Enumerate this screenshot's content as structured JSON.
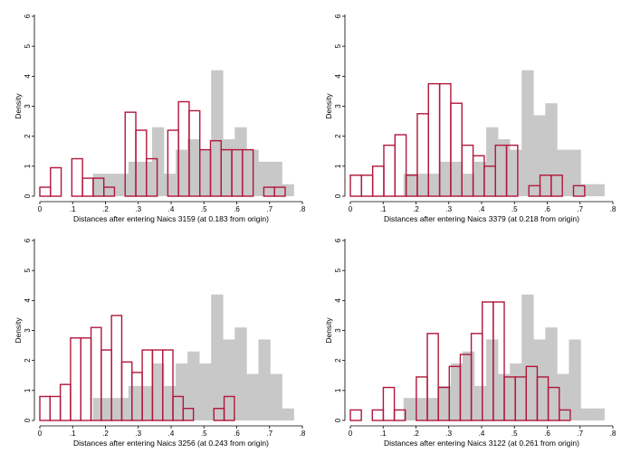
{
  "colors": {
    "background_bars": "#c8c8c8",
    "highlight_bars": "#b0173a",
    "axis": "#000000"
  },
  "chart_data": [
    {
      "type": "histogram",
      "xlabel": "Distances after entering Naics 3159 (at 0.183 from origin)",
      "ylabel": "Density",
      "xlim": [
        0,
        0.8
      ],
      "ylim": [
        0,
        6
      ],
      "xticks": [
        "0",
        ".1",
        ".2",
        ".3",
        ".4",
        ".5",
        ".6",
        ".7",
        ".8"
      ],
      "yticks": [
        "0",
        "1",
        "2",
        "3",
        "4",
        "5",
        "6"
      ],
      "background": {
        "bin_width": 0.036,
        "bins": [
          [
            0.162,
            0.75
          ],
          [
            0.198,
            0.75
          ],
          [
            0.234,
            0.75
          ],
          [
            0.27,
            1.15
          ],
          [
            0.306,
            1.15
          ],
          [
            0.342,
            2.3
          ],
          [
            0.378,
            0.75
          ],
          [
            0.414,
            1.55
          ],
          [
            0.45,
            1.9
          ],
          [
            0.486,
            1.55
          ],
          [
            0.522,
            4.2
          ],
          [
            0.558,
            1.9
          ],
          [
            0.594,
            2.3
          ],
          [
            0.63,
            1.55
          ],
          [
            0.666,
            1.15
          ],
          [
            0.702,
            1.15
          ],
          [
            0.738,
            0.4
          ]
        ]
      },
      "highlight": {
        "bin_width": 0.0325,
        "bins": [
          [
            0,
            0.3
          ],
          [
            0.0325,
            0.95
          ],
          [
            0.0975,
            1.25
          ],
          [
            0.13,
            0.6
          ],
          [
            0.1625,
            0.6
          ],
          [
            0.195,
            0.3
          ],
          [
            0.26,
            2.8
          ],
          [
            0.2925,
            2.2
          ],
          [
            0.325,
            1.25
          ],
          [
            0.39,
            2.2
          ],
          [
            0.4225,
            3.15
          ],
          [
            0.455,
            2.85
          ],
          [
            0.4875,
            1.55
          ],
          [
            0.52,
            1.85
          ],
          [
            0.5525,
            1.55
          ],
          [
            0.585,
            1.55
          ],
          [
            0.6175,
            1.55
          ],
          [
            0.6825,
            0.3
          ],
          [
            0.715,
            0.3
          ]
        ]
      }
    },
    {
      "type": "histogram",
      "xlabel": "Distances after entering Naics 3379 (at 0.218 from origin)",
      "ylabel": "Density",
      "xlim": [
        0,
        0.8
      ],
      "ylim": [
        0,
        6
      ],
      "xticks": [
        "0",
        ".1",
        ".2",
        ".3",
        ".4",
        ".5",
        ".6",
        ".7",
        ".8"
      ],
      "yticks": [
        "0",
        "1",
        "2",
        "3",
        "4",
        "5",
        "6"
      ],
      "background": {
        "bin_width": 0.036,
        "bins": [
          [
            0.162,
            0.75
          ],
          [
            0.198,
            0.75
          ],
          [
            0.234,
            0.75
          ],
          [
            0.27,
            1.15
          ],
          [
            0.306,
            1.15
          ],
          [
            0.342,
            0.75
          ],
          [
            0.378,
            1.15
          ],
          [
            0.414,
            2.3
          ],
          [
            0.45,
            1.9
          ],
          [
            0.486,
            1.55
          ],
          [
            0.522,
            4.2
          ],
          [
            0.558,
            2.7
          ],
          [
            0.594,
            3.1
          ],
          [
            0.63,
            1.55
          ],
          [
            0.666,
            1.55
          ],
          [
            0.702,
            0.4
          ],
          [
            0.738,
            0.4
          ]
        ]
      },
      "highlight": {
        "bin_width": 0.034,
        "bins": [
          [
            0,
            0.7
          ],
          [
            0.034,
            0.7
          ],
          [
            0.068,
            1.0
          ],
          [
            0.102,
            1.7
          ],
          [
            0.136,
            2.05
          ],
          [
            0.17,
            0.7
          ],
          [
            0.204,
            2.75
          ],
          [
            0.238,
            3.75
          ],
          [
            0.272,
            3.75
          ],
          [
            0.306,
            3.1
          ],
          [
            0.34,
            1.7
          ],
          [
            0.374,
            1.35
          ],
          [
            0.408,
            1.0
          ],
          [
            0.442,
            1.7
          ],
          [
            0.476,
            1.7
          ],
          [
            0.544,
            0.35
          ],
          [
            0.578,
            0.7
          ],
          [
            0.612,
            0.7
          ],
          [
            0.68,
            0.35
          ]
        ]
      }
    },
    {
      "type": "histogram",
      "xlabel": "Distances after entering Naics 3256 (at 0.243 from origin)",
      "ylabel": "Density",
      "xlim": [
        0,
        0.8
      ],
      "ylim": [
        0,
        6
      ],
      "xticks": [
        "0",
        ".1",
        ".2",
        ".3",
        ".4",
        ".5",
        ".6",
        ".7",
        ".8"
      ],
      "yticks": [
        "0",
        "1",
        "2",
        "3",
        "4",
        "5",
        "6"
      ],
      "background": {
        "bin_width": 0.036,
        "bins": [
          [
            0.162,
            0.75
          ],
          [
            0.198,
            0.75
          ],
          [
            0.234,
            0.75
          ],
          [
            0.27,
            1.15
          ],
          [
            0.306,
            1.15
          ],
          [
            0.342,
            1.9
          ],
          [
            0.378,
            1.15
          ],
          [
            0.414,
            1.9
          ],
          [
            0.45,
            2.3
          ],
          [
            0.486,
            1.9
          ],
          [
            0.522,
            4.2
          ],
          [
            0.558,
            2.7
          ],
          [
            0.594,
            3.1
          ],
          [
            0.63,
            1.55
          ],
          [
            0.666,
            2.7
          ],
          [
            0.702,
            1.55
          ],
          [
            0.738,
            0.4
          ]
        ]
      },
      "highlight": {
        "bin_width": 0.0312,
        "bins": [
          [
            0,
            0.8
          ],
          [
            0.0312,
            0.8
          ],
          [
            0.0624,
            1.2
          ],
          [
            0.0936,
            2.75
          ],
          [
            0.1248,
            2.75
          ],
          [
            0.156,
            3.1
          ],
          [
            0.1872,
            2.35
          ],
          [
            0.2184,
            3.5
          ],
          [
            0.2496,
            1.95
          ],
          [
            0.2808,
            1.6
          ],
          [
            0.312,
            2.35
          ],
          [
            0.3432,
            2.35
          ],
          [
            0.3744,
            2.35
          ],
          [
            0.4056,
            0.8
          ],
          [
            0.4368,
            0.4
          ],
          [
            0.5304,
            0.4
          ],
          [
            0.5616,
            0.8
          ]
        ]
      }
    },
    {
      "type": "histogram",
      "xlabel": "Distances after entering Naics 3122 (at 0.261 from origin)",
      "ylabel": "Density",
      "xlim": [
        0,
        0.8
      ],
      "ylim": [
        0,
        6
      ],
      "xticks": [
        "0",
        ".1",
        ".2",
        ".3",
        ".4",
        ".5",
        ".6",
        ".7",
        ".8"
      ],
      "yticks": [
        "0",
        "1",
        "2",
        "3",
        "4",
        "5",
        "6"
      ],
      "background": {
        "bin_width": 0.036,
        "bins": [
          [
            0.162,
            0.75
          ],
          [
            0.198,
            0.75
          ],
          [
            0.234,
            0.75
          ],
          [
            0.27,
            1.15
          ],
          [
            0.306,
            1.9
          ],
          [
            0.342,
            2.3
          ],
          [
            0.378,
            1.15
          ],
          [
            0.414,
            2.7
          ],
          [
            0.45,
            1.55
          ],
          [
            0.486,
            1.9
          ],
          [
            0.522,
            4.2
          ],
          [
            0.558,
            2.7
          ],
          [
            0.594,
            3.1
          ],
          [
            0.63,
            1.55
          ],
          [
            0.666,
            2.7
          ],
          [
            0.702,
            0.4
          ],
          [
            0.738,
            0.4
          ]
        ]
      },
      "highlight": {
        "bin_width": 0.0335,
        "bins": [
          [
            0,
            0.35
          ],
          [
            0.067,
            0.35
          ],
          [
            0.1005,
            1.1
          ],
          [
            0.134,
            0.35
          ],
          [
            0.201,
            1.45
          ],
          [
            0.2345,
            2.9
          ],
          [
            0.268,
            1.1
          ],
          [
            0.3015,
            1.8
          ],
          [
            0.335,
            2.2
          ],
          [
            0.3685,
            2.9
          ],
          [
            0.402,
            3.95
          ],
          [
            0.4355,
            3.95
          ],
          [
            0.469,
            1.45
          ],
          [
            0.5025,
            1.45
          ],
          [
            0.536,
            1.8
          ],
          [
            0.5695,
            1.45
          ],
          [
            0.603,
            1.1
          ],
          [
            0.6365,
            0.35
          ]
        ]
      }
    }
  ]
}
